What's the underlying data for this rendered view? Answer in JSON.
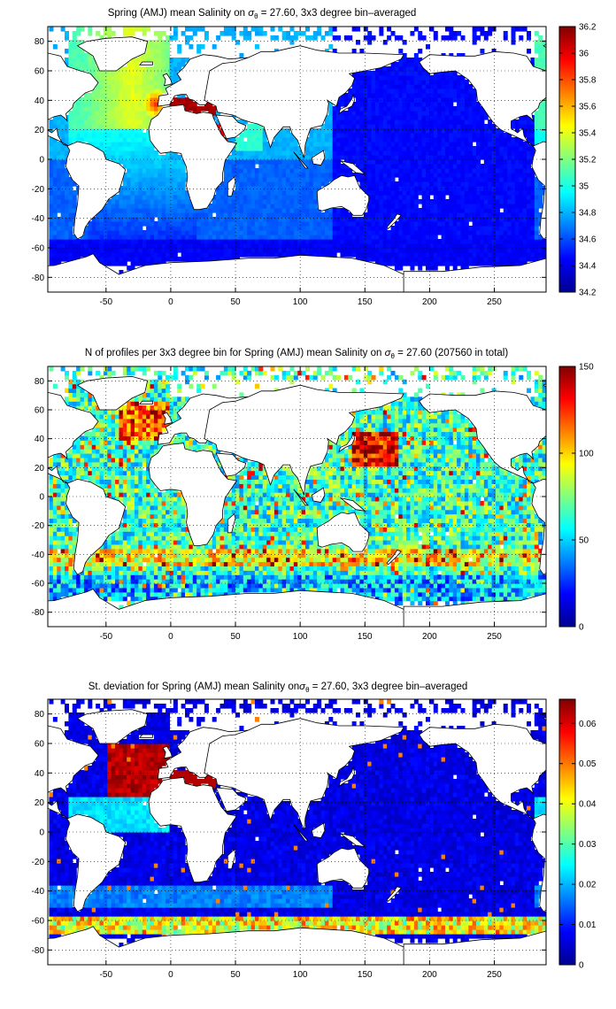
{
  "colors": {
    "land": "#ffffff",
    "frame": "#000000",
    "grid": "#000000"
  },
  "icons": [
    "colorbar-jet"
  ],
  "chart_data": [
    {
      "type": "heatmap",
      "title_prefix": "Spring (AMJ) mean Salinity on ",
      "title_sub": "θ",
      "title_suffix": " = 27.60, 3x3 degree bin–averaged",
      "xlim": [
        -95,
        290
      ],
      "ylim": [
        -90,
        90
      ],
      "xticks": [
        -50,
        0,
        50,
        100,
        150,
        200,
        250
      ],
      "yticks": [
        -80,
        -60,
        -40,
        -20,
        0,
        20,
        40,
        60,
        80
      ],
      "grid": true,
      "colorbar": {
        "min": 34.2,
        "max": 36.2,
        "ticks": [
          34.2,
          34.4,
          34.6,
          34.8,
          35,
          35.2,
          35.4,
          35.6,
          35.8,
          36,
          36.2
        ]
      },
      "bin_deg": 3,
      "field": "mean_salinity"
    },
    {
      "type": "heatmap",
      "title_prefix": "N of profiles per 3x3 degree bin for Spring (AMJ) mean Salinity on ",
      "title_sub": "θ",
      "title_suffix": " = 27.60 (207560 in total)",
      "xlim": [
        -95,
        290
      ],
      "ylim": [
        -90,
        90
      ],
      "xticks": [
        -50,
        0,
        50,
        100,
        150,
        200,
        250
      ],
      "yticks": [
        -80,
        -60,
        -40,
        -20,
        0,
        20,
        40,
        60,
        80
      ],
      "grid": true,
      "colorbar": {
        "min": 0,
        "max": 150,
        "ticks": [
          0,
          50,
          100,
          150
        ]
      },
      "bin_deg": 3,
      "field": "profile_count"
    },
    {
      "type": "heatmap",
      "title_prefix": "St. deviation for Spring (AMJ) mean Salinity on",
      "title_sub": "θ",
      "title_suffix": " = 27.60, 3x3 degree bin–averaged",
      "xlim": [
        -95,
        290
      ],
      "ylim": [
        -90,
        90
      ],
      "xticks": [
        -50,
        0,
        50,
        100,
        150,
        200,
        250
      ],
      "yticks": [
        -80,
        -60,
        -40,
        -20,
        0,
        20,
        40,
        60,
        80
      ],
      "grid": true,
      "colorbar": {
        "min": 0,
        "max": 0.066,
        "ticks": [
          0,
          0.01,
          0.02,
          0.03,
          0.04,
          0.05,
          0.06
        ]
      },
      "bin_deg": 3,
      "field": "salinity_std"
    }
  ]
}
